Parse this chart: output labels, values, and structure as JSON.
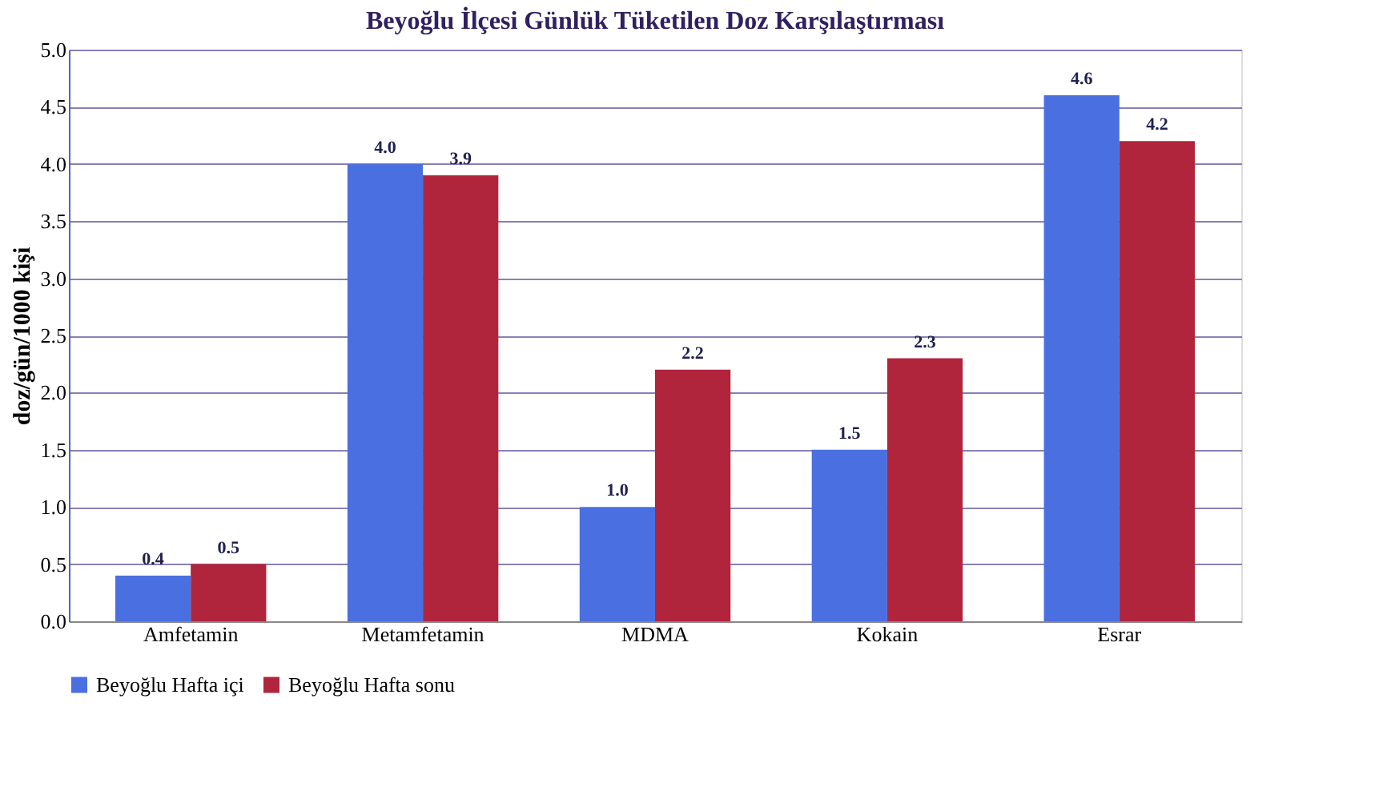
{
  "chart_data": {
    "type": "bar",
    "title": "Beyoğlu İlçesi Günlük Tüketilen Doz Karşılaştırması",
    "ylabel": "doz/gün/1000 kişi",
    "categories": [
      "Amfetamin",
      "Metamfetamin",
      "MDMA",
      "Kokain",
      "Esrar"
    ],
    "series": [
      {
        "name": "Beyoğlu Hafta içi",
        "color": "#4a6fe0",
        "values": [
          0.4,
          4.0,
          1.0,
          1.5,
          4.6
        ],
        "value_labels": [
          "0.4",
          "4.0",
          "1.0",
          "1.5",
          "4.6"
        ]
      },
      {
        "name": "Beyoğlu Hafta sonu",
        "color": "#b0243c",
        "values": [
          0.5,
          3.9,
          2.2,
          2.3,
          4.2
        ],
        "value_labels": [
          "0.5",
          "3.9",
          "2.2",
          "2.3",
          "4.2"
        ]
      }
    ],
    "ylim": [
      0,
      5
    ],
    "yticks": [
      {
        "value": 0,
        "label": "0.0"
      },
      {
        "value": 0.5,
        "label": "0.5"
      },
      {
        "value": 1,
        "label": "1.0"
      },
      {
        "value": 1.5,
        "label": "1.5"
      },
      {
        "value": 2,
        "label": "2.0"
      },
      {
        "value": 2.5,
        "label": "2.5"
      },
      {
        "value": 3,
        "label": "3.0"
      },
      {
        "value": 3.5,
        "label": "3.5"
      },
      {
        "value": 4,
        "label": "4.0"
      },
      {
        "value": 4.5,
        "label": "4.5"
      },
      {
        "value": 5,
        "label": "5.0"
      }
    ],
    "grid": "y",
    "legend": "bottom"
  }
}
